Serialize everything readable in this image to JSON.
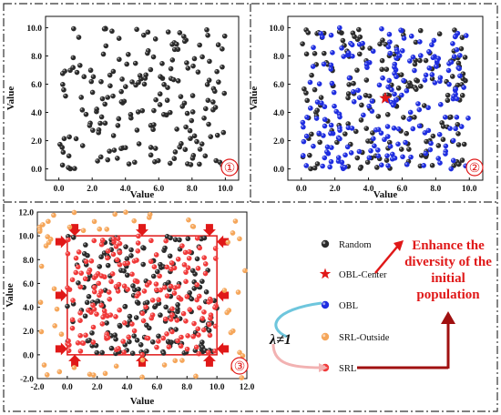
{
  "chart_data": [
    {
      "type": "scatter",
      "panel_label": "①",
      "xlabel": "Value",
      "ylabel": "Value",
      "xlim": [
        -0.8,
        10.8
      ],
      "ylim": [
        -0.8,
        10.8
      ],
      "x_ticks": [
        "0.0",
        "2.0",
        "4.0",
        "6.0",
        "8.0",
        "10.0"
      ],
      "y_ticks": [
        "0.0",
        "2.0",
        "4.0",
        "6.0",
        "8.0",
        "10.0"
      ],
      "grid": false,
      "series": [
        {
          "name": "Random",
          "color": "#2b2b2b",
          "count": 200,
          "distribution": "uniform",
          "range": [
            0,
            10
          ]
        }
      ]
    },
    {
      "type": "scatter",
      "panel_label": "②",
      "xlabel": "Value",
      "ylabel": "Value",
      "xlim": [
        -0.8,
        10.8
      ],
      "ylim": [
        -0.8,
        10.8
      ],
      "x_ticks": [
        "0.0",
        "2.0",
        "4.0",
        "6.0",
        "8.0",
        "10.0"
      ],
      "y_ticks": [
        "0.0",
        "2.0",
        "4.0",
        "6.0",
        "8.0",
        "10.0"
      ],
      "grid": false,
      "series": [
        {
          "name": "Random",
          "color": "#2b2b2b",
          "count": 200,
          "distribution": "uniform",
          "range": [
            0,
            10
          ]
        },
        {
          "name": "OBL",
          "color": "#1f2ee0",
          "count": 220,
          "distribution": "uniform",
          "range": [
            0,
            10
          ]
        },
        {
          "name": "OBL-Center",
          "color": "#e01818",
          "points": [
            [
              5.0,
              5.0
            ]
          ],
          "marker": "star"
        }
      ]
    },
    {
      "type": "scatter",
      "panel_label": "③",
      "xlabel": "Value",
      "ylabel": "Value",
      "xlim": [
        -2.0,
        12.0
      ],
      "ylim": [
        -2.0,
        12.0
      ],
      "x_ticks": [
        "-2.0",
        "0.0",
        "2.0",
        "4.0",
        "6.0",
        "8.0",
        "10.0",
        "12.0"
      ],
      "y_ticks": [
        "-2.0",
        "0.0",
        "2.0",
        "4.0",
        "6.0",
        "8.0",
        "10.0",
        "12.0"
      ],
      "grid": false,
      "boundary_box": [
        0,
        0,
        10,
        10
      ],
      "series": [
        {
          "name": "Random",
          "color": "#2b2b2b",
          "count": 200,
          "distribution": "uniform",
          "range": [
            0,
            10
          ]
        },
        {
          "name": "SRL",
          "color": "#f03a3a",
          "count": 200,
          "distribution": "uniform",
          "range": [
            0,
            10
          ]
        },
        {
          "name": "SRL-Outside",
          "color": "#f5a65a",
          "count": 60,
          "distribution": "outside_box",
          "range": [
            -2,
            12
          ]
        }
      ]
    }
  ],
  "legend": {
    "items": [
      {
        "label": "Random",
        "color": "#2b2b2b",
        "marker": "circle"
      },
      {
        "label": "OBL-Center",
        "color": "#e01818",
        "marker": "star"
      },
      {
        "label": "OBL",
        "color": "#1f2ee0",
        "marker": "circle"
      },
      {
        "label": "SRL-Outside",
        "color": "#f5a65a",
        "marker": "circle"
      },
      {
        "label": "SRL",
        "color": "#f03a3a",
        "marker": "circle"
      }
    ]
  },
  "annotations": {
    "lambda_label": "λ≠1",
    "enhance_text": [
      "Enhance the",
      "diversity of the",
      "initial",
      "population"
    ],
    "enhance_color": "#e01818",
    "arrow_color": "#a01010"
  }
}
